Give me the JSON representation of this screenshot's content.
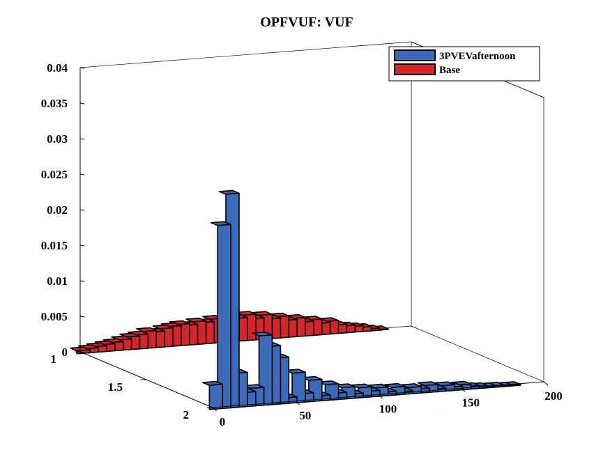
{
  "chart_data": {
    "type": "area",
    "title": "OPFVUF: VUF",
    "view": "3d-ribbon",
    "xlim": [
      0,
      200
    ],
    "ylim": [
      1,
      2
    ],
    "zlim": [
      0,
      0.04
    ],
    "x_ticks": [
      "0",
      "50",
      "100",
      "150",
      "200"
    ],
    "y_ticks": [
      "1",
      "1.5",
      "2"
    ],
    "z_ticks": [
      "0",
      "0.005",
      "0.01",
      "0.015",
      "0.02",
      "0.025",
      "0.03",
      "0.035",
      "0.04"
    ],
    "legend_position": "top-right",
    "series": [
      {
        "name": "3PVEVafternoon",
        "color": "#3a6ab8",
        "y_position": 2,
        "x": [
          0,
          5,
          10,
          15,
          20,
          25,
          30,
          35,
          40,
          45,
          50,
          55,
          60,
          65,
          70,
          75,
          80,
          85,
          90,
          95,
          100,
          105,
          110,
          115,
          120,
          125,
          130,
          135,
          140,
          145,
          150,
          155,
          160,
          165,
          170,
          175,
          180
        ],
        "values": [
          0.0034,
          0.0258,
          0.0301,
          0.0048,
          0.002,
          0.0025,
          0.0098,
          0.0082,
          0.0065,
          0.0008,
          0.0042,
          0.0012,
          0.003,
          0.0007,
          0.0022,
          0.0009,
          0.0016,
          0.0006,
          0.0014,
          0.0008,
          0.0012,
          0.0005,
          0.0011,
          0.0004,
          0.0009,
          0.0006,
          0.001,
          0.0004,
          0.0008,
          0.0005,
          0.0007,
          0.0004,
          0.0003,
          0.0002,
          0.0002,
          0.0001,
          0.0001
        ]
      },
      {
        "name": "Base",
        "color": "#d2262a",
        "y_position": 1,
        "x": [
          0,
          5,
          10,
          15,
          20,
          25,
          30,
          35,
          40,
          45,
          50,
          55,
          60,
          65,
          70,
          75,
          80,
          85,
          90,
          95,
          100,
          105,
          110,
          115,
          120,
          125,
          130,
          135,
          140,
          145,
          150,
          155,
          160,
          165,
          170,
          175,
          180
        ],
        "values": [
          0.0004,
          0.0006,
          0.0008,
          0.001,
          0.0012,
          0.0015,
          0.0018,
          0.002,
          0.0024,
          0.0022,
          0.0026,
          0.0028,
          0.003,
          0.0028,
          0.0032,
          0.003,
          0.0034,
          0.003,
          0.0036,
          0.0032,
          0.0036,
          0.003,
          0.0034,
          0.0028,
          0.003,
          0.0024,
          0.0026,
          0.002,
          0.0022,
          0.0016,
          0.0018,
          0.0012,
          0.001,
          0.0008,
          0.0006,
          0.0003,
          0.0001
        ]
      }
    ]
  }
}
